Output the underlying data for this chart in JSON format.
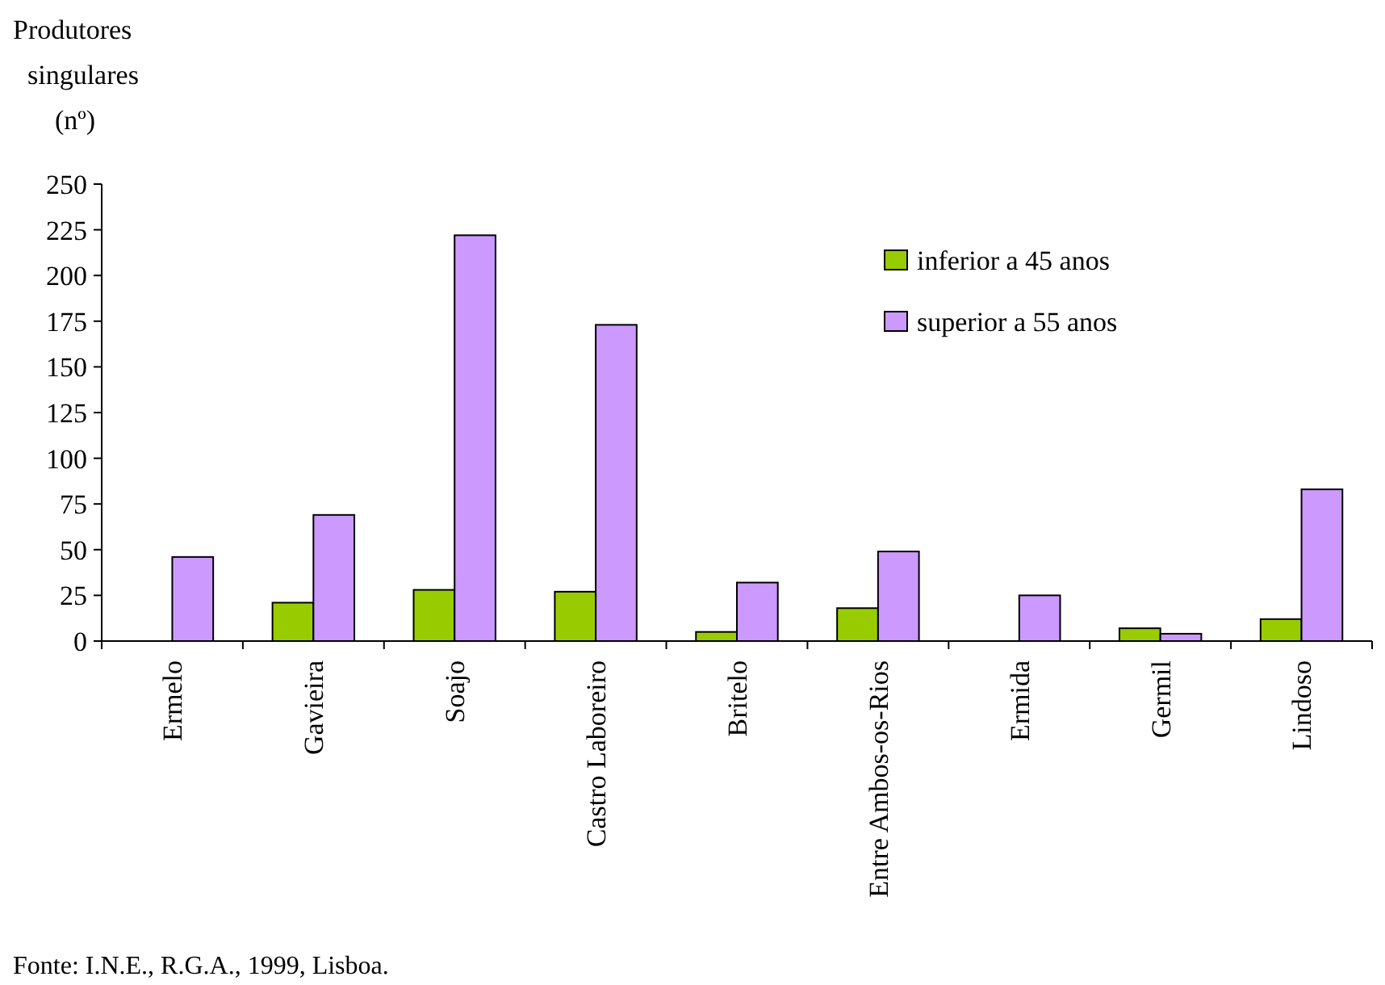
{
  "chart_data": {
    "type": "bar",
    "ylabel": "Produtores singulares (nº)",
    "categories": [
      "Ermelo",
      "Gavieira",
      "Soajo",
      "Castro Laboreiro",
      "Britelo",
      "Entre Ambos-os-Rios",
      "Ermida",
      "Germil",
      "Lindoso"
    ],
    "series": [
      {
        "name": "inferior a 45 anos",
        "color": "#99cc00",
        "values": [
          0,
          21,
          28,
          27,
          5,
          18,
          0,
          7,
          12
        ]
      },
      {
        "name": "superior a 55 anos",
        "color": "#cc99ff",
        "values": [
          46,
          69,
          222,
          173,
          32,
          49,
          25,
          4,
          83
        ]
      }
    ],
    "ylim": [
      0,
      250
    ],
    "yticks": [
      0,
      25,
      50,
      75,
      100,
      125,
      150,
      175,
      200,
      225,
      250
    ],
    "grid": false,
    "legend": "top right",
    "annotations": [
      "Fonte: I.N.E., R.G.A., 1999, Lisboa."
    ]
  }
}
